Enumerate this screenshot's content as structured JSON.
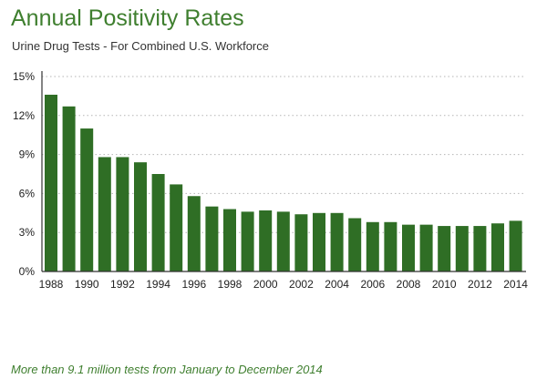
{
  "title": "Annual Positivity Rates",
  "subtitle": "Urine Drug Tests - For Combined U.S. Workforce",
  "footnote": "More than 9.1 million tests from January to December 2014",
  "colors": {
    "bar": "#2f6e25",
    "title": "#3f7f2f",
    "grid": "#b5b5b5",
    "axis": "#333333"
  },
  "chart_data": {
    "type": "bar",
    "title": "Annual Positivity Rates",
    "subtitle": "Urine Drug Tests - For Combined U.S. Workforce",
    "xlabel": "",
    "ylabel": "",
    "ylim": [
      0,
      15
    ],
    "grid": true,
    "y_ticks": [
      0,
      3,
      6,
      9,
      12,
      15
    ],
    "y_tick_labels": [
      "0%",
      "3%",
      "6%",
      "9%",
      "12%",
      "15%"
    ],
    "categories": [
      "1988",
      "1989",
      "1990",
      "1991",
      "1992",
      "1993",
      "1994",
      "1995",
      "1996",
      "1997",
      "1998",
      "1999",
      "2000",
      "2001",
      "2002",
      "2003",
      "2004",
      "2005",
      "2006",
      "2007",
      "2008",
      "2009",
      "2010",
      "2011",
      "2012",
      "2013",
      "2014"
    ],
    "x_tick_labels": [
      "1988",
      "1990",
      "1992",
      "1994",
      "1996",
      "1998",
      "2000",
      "2002",
      "2004",
      "2006",
      "2008",
      "2010",
      "2012",
      "2014"
    ],
    "values": [
      13.6,
      12.7,
      11.0,
      8.8,
      8.8,
      8.4,
      7.5,
      6.7,
      5.8,
      5.0,
      4.8,
      4.6,
      4.7,
      4.6,
      4.4,
      4.5,
      4.5,
      4.1,
      3.8,
      3.8,
      3.6,
      3.6,
      3.5,
      3.5,
      3.5,
      3.7,
      3.9
    ]
  }
}
